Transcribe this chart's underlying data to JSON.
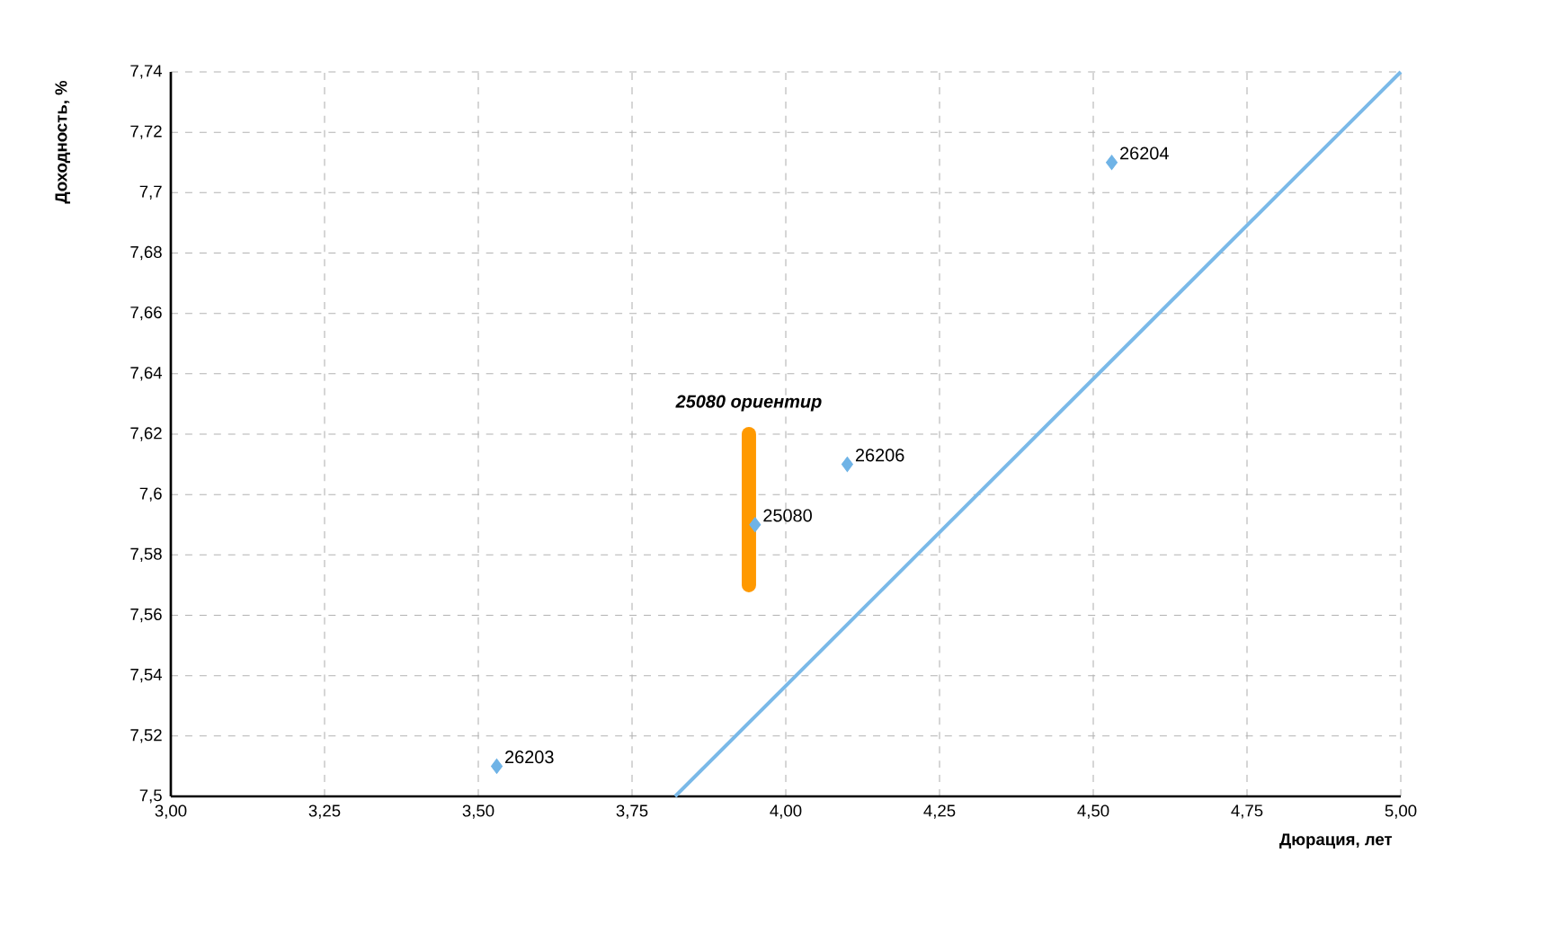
{
  "chart_data": {
    "type": "scatter",
    "xlabel": "Дюрация, лет",
    "ylabel": "Доходность, %",
    "xlim": [
      3.0,
      5.0
    ],
    "ylim": [
      7.5,
      7.74
    ],
    "xticks": [
      {
        "value": 3.0,
        "label": "3,00"
      },
      {
        "value": 3.25,
        "label": "3,25"
      },
      {
        "value": 3.5,
        "label": "3,50"
      },
      {
        "value": 3.75,
        "label": "3,75"
      },
      {
        "value": 4.0,
        "label": "4,00"
      },
      {
        "value": 4.25,
        "label": "4,25"
      },
      {
        "value": 4.5,
        "label": "4,50"
      },
      {
        "value": 4.75,
        "label": "4,75"
      },
      {
        "value": 5.0,
        "label": "5,00"
      }
    ],
    "yticks": [
      {
        "value": 7.5,
        "label": "7,5"
      },
      {
        "value": 7.52,
        "label": "7,52"
      },
      {
        "value": 7.54,
        "label": "7,54"
      },
      {
        "value": 7.56,
        "label": "7,56"
      },
      {
        "value": 7.58,
        "label": "7,58"
      },
      {
        "value": 7.6,
        "label": "7,6"
      },
      {
        "value": 7.62,
        "label": "7,62"
      },
      {
        "value": 7.64,
        "label": "7,64"
      },
      {
        "value": 7.66,
        "label": "7,66"
      },
      {
        "value": 7.68,
        "label": "7,68"
      },
      {
        "value": 7.7,
        "label": "7,7"
      },
      {
        "value": 7.72,
        "label": "7,72"
      },
      {
        "value": 7.74,
        "label": "7,74"
      }
    ],
    "grid": true,
    "marker": "diamond",
    "series": [
      {
        "color": "#6fb3e6",
        "x": [
          3.53,
          3.95,
          4.1,
          4.53
        ],
        "values": [
          7.51,
          7.59,
          7.61,
          7.71
        ]
      },
      {
        "type": "line",
        "color": "#7ab9e8",
        "x": [
          3.82,
          5.0
        ],
        "values": [
          7.5,
          7.74
        ],
        "marker": "none"
      },
      {
        "type": "line",
        "color": "#ff9900",
        "x": [
          3.94,
          3.94
        ],
        "values": [
          7.57,
          7.62
        ],
        "marker": "none"
      }
    ],
    "annotations": [
      {
        "text": "26203",
        "x": 3.53,
        "y": 7.51
      },
      {
        "text": "25080",
        "x": 3.95,
        "y": 7.59
      },
      {
        "text": "26206",
        "x": 4.1,
        "y": 7.61
      },
      {
        "text": "26204",
        "x": 4.53,
        "y": 7.71
      },
      {
        "text": "25080 ориентир",
        "x": 3.94,
        "y": 7.62
      }
    ]
  }
}
